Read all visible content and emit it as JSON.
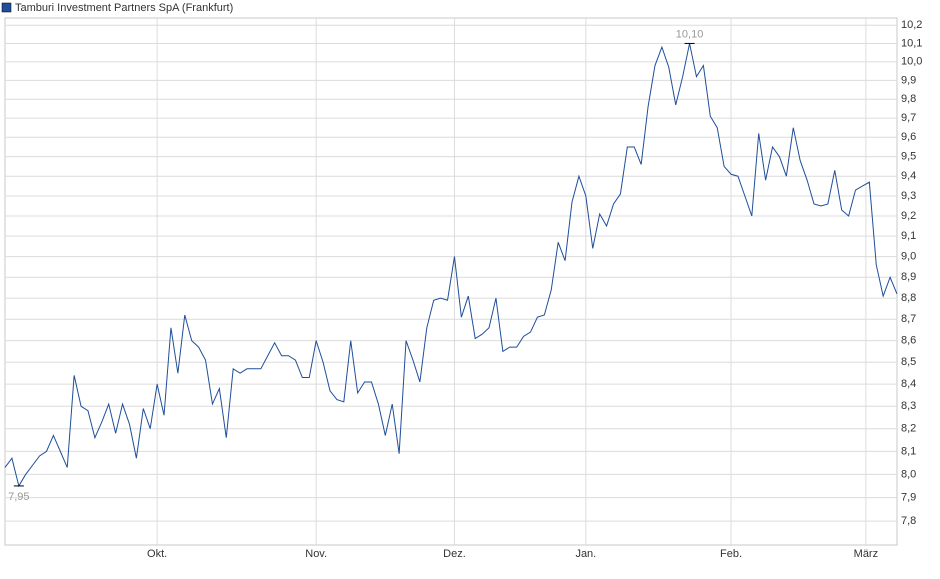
{
  "chart_data": {
    "type": "line",
    "log_scale": true,
    "grid": true,
    "series": [
      {
        "name": "Tamburi Investment Partners SpA (Frankfurt)",
        "color": "#1f4e9a",
        "values": [
          8.03,
          8.07,
          7.95,
          8.0,
          8.04,
          8.08,
          8.1,
          8.17,
          8.1,
          8.03,
          8.44,
          8.3,
          8.28,
          8.16,
          8.23,
          8.31,
          8.18,
          8.31,
          8.22,
          8.07,
          8.29,
          8.2,
          8.4,
          8.26,
          8.66,
          8.45,
          8.72,
          8.6,
          8.57,
          8.51,
          8.31,
          8.38,
          8.16,
          8.47,
          8.45,
          8.47,
          8.47,
          8.47,
          8.53,
          8.59,
          8.53,
          8.53,
          8.51,
          8.43,
          8.43,
          8.6,
          8.5,
          8.37,
          8.33,
          8.32,
          8.6,
          8.36,
          8.41,
          8.41,
          8.31,
          8.17,
          8.31,
          8.09,
          8.6,
          8.51,
          8.41,
          8.66,
          8.79,
          8.8,
          8.79,
          9.0,
          8.71,
          8.81,
          8.61,
          8.63,
          8.66,
          8.8,
          8.55,
          8.57,
          8.57,
          8.62,
          8.64,
          8.71,
          8.72,
          8.84,
          9.07,
          8.98,
          9.27,
          9.4,
          9.3,
          9.04,
          9.21,
          9.15,
          9.26,
          9.31,
          9.55,
          9.55,
          9.46,
          9.76,
          9.98,
          10.08,
          9.97,
          9.77,
          9.92,
          10.1,
          9.92,
          9.98,
          9.71,
          9.65,
          9.45,
          9.41,
          9.4,
          9.3,
          9.2,
          9.62,
          9.38,
          9.55,
          9.5,
          9.4,
          9.65,
          9.48,
          9.38,
          9.26,
          9.25,
          9.26,
          9.43,
          9.23,
          9.2,
          9.33,
          9.35,
          9.37,
          8.96,
          8.81,
          8.9,
          8.82
        ]
      }
    ],
    "xlim": [
      0,
      129
    ],
    "xticks": [
      {
        "value": 22,
        "label": "Okt."
      },
      {
        "value": 45,
        "label": "Nov."
      },
      {
        "value": 65,
        "label": "Dez."
      },
      {
        "value": 84,
        "label": "Jan."
      },
      {
        "value": 105,
        "label": "Feb."
      },
      {
        "value": 124.5,
        "label": "März"
      }
    ],
    "ylim": [
      7.7,
      10.24
    ],
    "yticks": [
      {
        "value": 7.8,
        "label": "7,8"
      },
      {
        "value": 7.9,
        "label": "7,9"
      },
      {
        "value": 8.0,
        "label": "8,0"
      },
      {
        "value": 8.1,
        "label": "8,1"
      },
      {
        "value": 8.2,
        "label": "8,2"
      },
      {
        "value": 8.3,
        "label": "8,3"
      },
      {
        "value": 8.4,
        "label": "8,4"
      },
      {
        "value": 8.5,
        "label": "8,5"
      },
      {
        "value": 8.6,
        "label": "8,6"
      },
      {
        "value": 8.7,
        "label": "8,7"
      },
      {
        "value": 8.8,
        "label": "8,8"
      },
      {
        "value": 8.9,
        "label": "8,9"
      },
      {
        "value": 9.0,
        "label": "9,0"
      },
      {
        "value": 9.1,
        "label": "9,1"
      },
      {
        "value": 9.2,
        "label": "9,2"
      },
      {
        "value": 9.3,
        "label": "9,3"
      },
      {
        "value": 9.4,
        "label": "9,4"
      },
      {
        "value": 9.5,
        "label": "9,5"
      },
      {
        "value": 9.6,
        "label": "9,6"
      },
      {
        "value": 9.7,
        "label": "9,7"
      },
      {
        "value": 9.8,
        "label": "9,8"
      },
      {
        "value": 9.9,
        "label": "9,9"
      },
      {
        "value": 10.0,
        "label": "10,0"
      },
      {
        "value": 10.1,
        "label": "10,1"
      },
      {
        "value": 10.2,
        "label": "10,2"
      }
    ],
    "annotations": [
      {
        "x": 99,
        "value": 10.1,
        "label": "10,10",
        "kind": "high"
      },
      {
        "x": 2,
        "value": 7.95,
        "label": "7,95",
        "kind": "low"
      }
    ]
  }
}
